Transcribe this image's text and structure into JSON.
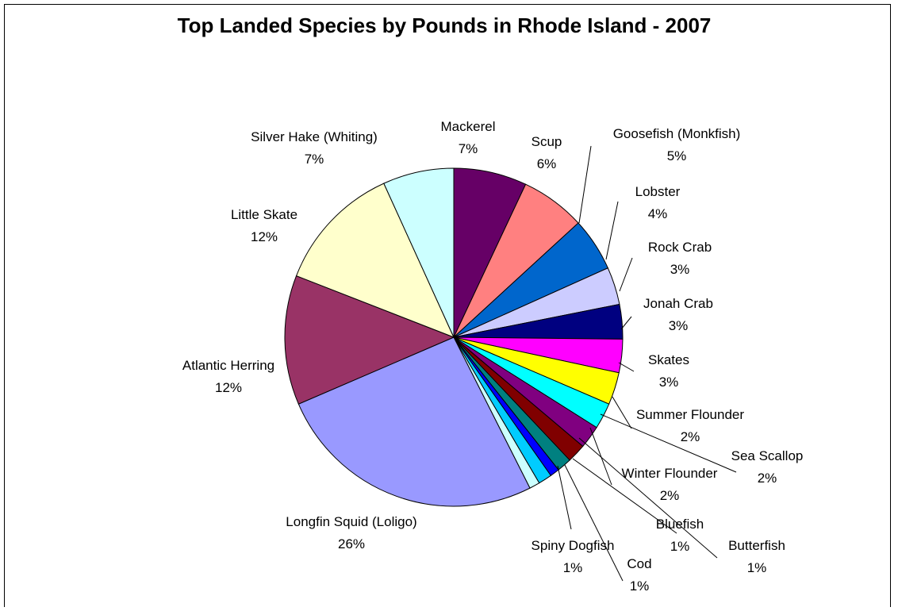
{
  "chart_data": {
    "type": "pie",
    "title": "Top Landed Species by Pounds in Rhode Island - 2007",
    "slices": [
      {
        "label": "Mackerel",
        "percent_label": "7%",
        "value": 7.0,
        "color": "#660066"
      },
      {
        "label": "Scup",
        "percent_label": "6%",
        "value": 6.2,
        "color": "#FF8080"
      },
      {
        "label": "Goosefish (Monkfish)",
        "percent_label": "5%",
        "value": 5.1,
        "color": "#0066CC"
      },
      {
        "label": "Lobster",
        "percent_label": "4%",
        "value": 3.6,
        "color": "#CCCCFF"
      },
      {
        "label": "Rock Crab",
        "percent_label": "3%",
        "value": 3.3,
        "color": "#000080"
      },
      {
        "label": "Jonah Crab",
        "percent_label": "3%",
        "value": 3.2,
        "color": "#FF00FF"
      },
      {
        "label": "Skates",
        "percent_label": "3%",
        "value": 3.1,
        "color": "#FFFF00"
      },
      {
        "label": "Summer Flounder",
        "percent_label": "2%",
        "value": 2.5,
        "color": "#00FFFF"
      },
      {
        "label": "Sea Scallop",
        "percent_label": "2%",
        "value": 2.2,
        "color": "#800080"
      },
      {
        "label": "Winter Flounder",
        "percent_label": "2%",
        "value": 1.8,
        "color": "#800000"
      },
      {
        "label": "Butterfish",
        "percent_label": "1%",
        "value": 1.4,
        "color": "#008080"
      },
      {
        "label": "Bluefish",
        "percent_label": "1%",
        "value": 0.9,
        "color": "#0000FF"
      },
      {
        "label": "Cod",
        "percent_label": "1%",
        "value": 1.3,
        "color": "#00CCFF"
      },
      {
        "label": "Spiny Dogfish",
        "percent_label": "1%",
        "value": 1.0,
        "color": "#CCFFFF"
      },
      {
        "label": "Longfin Squid (Loligo)",
        "percent_label": "26%",
        "value": 26.0,
        "color": "#9999FF"
      },
      {
        "label": "Atlantic Herring",
        "percent_label": "12%",
        "value": 12.4,
        "color": "#993366"
      },
      {
        "label": "Little Skate",
        "percent_label": "12%",
        "value": 12.3,
        "color": "#FFFFCC"
      },
      {
        "label": "Silver Hake (Whiting)",
        "percent_label": "7%",
        "value": 6.8,
        "color": "#CCFFFF"
      }
    ],
    "start_angle_deg": 0,
    "direction": "clockwise",
    "legend": "none"
  }
}
